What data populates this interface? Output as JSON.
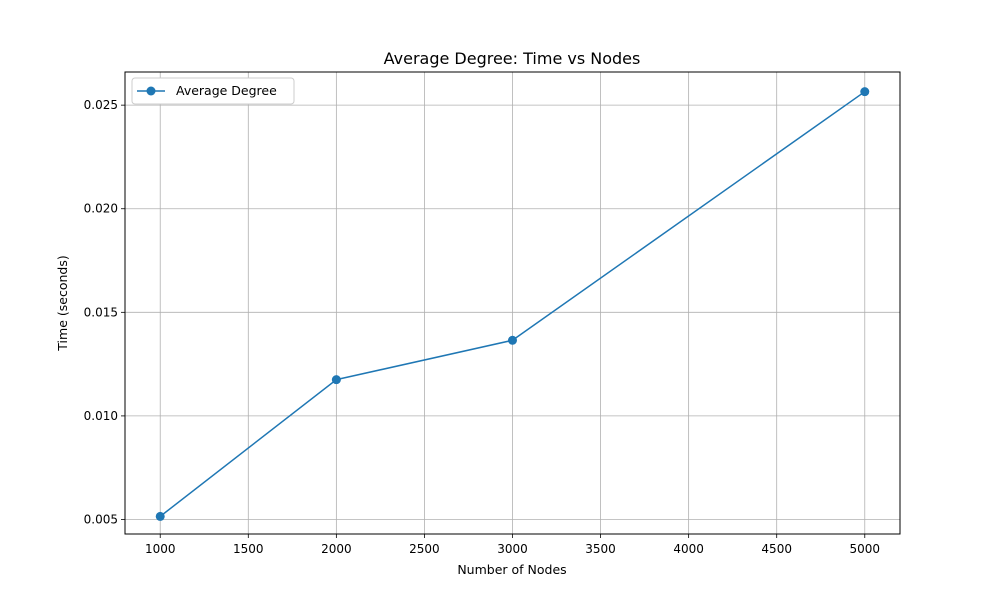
{
  "chart_data": {
    "type": "line",
    "title": "Average Degree: Time vs Nodes",
    "xlabel": "Number of Nodes",
    "ylabel": "Time (seconds)",
    "xlim": [
      800,
      5200
    ],
    "ylim": [
      0.0043,
      0.0266
    ],
    "xticks": [
      1000,
      1500,
      2000,
      2500,
      3000,
      3500,
      4000,
      4500,
      5000
    ],
    "yticks": [
      0.005,
      0.01,
      0.015,
      0.02,
      0.025
    ],
    "ytick_labels": [
      "0.005",
      "0.010",
      "0.015",
      "0.020",
      "0.025"
    ],
    "grid": true,
    "legend_position": "top-left",
    "series": [
      {
        "name": "Average Degree",
        "color": "#1f77b4",
        "marker": "circle",
        "x": [
          1000,
          2000,
          3000,
          5000
        ],
        "y": [
          0.00515,
          0.01175,
          0.01365,
          0.02565
        ]
      }
    ]
  }
}
